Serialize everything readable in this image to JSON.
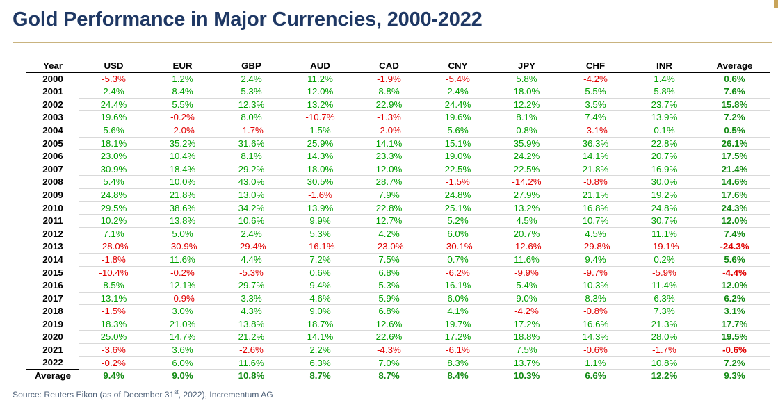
{
  "title": "Gold Performance in Major Currencies, 2000-2022",
  "source": {
    "prefix": "Source: Reuters Eikon (as of December 31",
    "sup": "st",
    "suffix": ", 2022), Incrementum AG"
  },
  "colors": {
    "title": "#1f3864",
    "positive": "#00a000",
    "negative": "#e00000",
    "rule": "#c9b37f"
  },
  "table": {
    "columns": [
      "Year",
      "USD",
      "EUR",
      "GBP",
      "AUD",
      "CAD",
      "CNY",
      "JPY",
      "CHF",
      "INR",
      "Average"
    ],
    "rows": [
      {
        "year": "2000",
        "values": [
          "-5.3%",
          "1.2%",
          "2.4%",
          "11.2%",
          "-1.9%",
          "-5.4%",
          "5.8%",
          "-4.2%",
          "1.4%"
        ],
        "average": "0.6%"
      },
      {
        "year": "2001",
        "values": [
          "2.4%",
          "8.4%",
          "5.3%",
          "12.0%",
          "8.8%",
          "2.4%",
          "18.0%",
          "5.5%",
          "5.8%"
        ],
        "average": "7.6%"
      },
      {
        "year": "2002",
        "values": [
          "24.4%",
          "5.5%",
          "12.3%",
          "13.2%",
          "22.9%",
          "24.4%",
          "12.2%",
          "3.5%",
          "23.7%"
        ],
        "average": "15.8%"
      },
      {
        "year": "2003",
        "values": [
          "19.6%",
          "-0.2%",
          "8.0%",
          "-10.7%",
          "-1.3%",
          "19.6%",
          "8.1%",
          "7.4%",
          "13.9%"
        ],
        "average": "7.2%"
      },
      {
        "year": "2004",
        "values": [
          "5.6%",
          "-2.0%",
          "-1.7%",
          "1.5%",
          "-2.0%",
          "5.6%",
          "0.8%",
          "-3.1%",
          "0.1%"
        ],
        "average": "0.5%"
      },
      {
        "year": "2005",
        "values": [
          "18.1%",
          "35.2%",
          "31.6%",
          "25.9%",
          "14.1%",
          "15.1%",
          "35.9%",
          "36.3%",
          "22.8%"
        ],
        "average": "26.1%"
      },
      {
        "year": "2006",
        "values": [
          "23.0%",
          "10.4%",
          "8.1%",
          "14.3%",
          "23.3%",
          "19.0%",
          "24.2%",
          "14.1%",
          "20.7%"
        ],
        "average": "17.5%"
      },
      {
        "year": "2007",
        "values": [
          "30.9%",
          "18.4%",
          "29.2%",
          "18.0%",
          "12.0%",
          "22.5%",
          "22.5%",
          "21.8%",
          "16.9%"
        ],
        "average": "21.4%"
      },
      {
        "year": "2008",
        "values": [
          "5.4%",
          "10.0%",
          "43.0%",
          "30.5%",
          "28.7%",
          "-1.5%",
          "-14.2%",
          "-0.8%",
          "30.0%"
        ],
        "average": "14.6%"
      },
      {
        "year": "2009",
        "values": [
          "24.8%",
          "21.8%",
          "13.0%",
          "-1.6%",
          "7.9%",
          "24.8%",
          "27.9%",
          "21.1%",
          "19.2%"
        ],
        "average": "17.6%"
      },
      {
        "year": "2010",
        "values": [
          "29.5%",
          "38.6%",
          "34.2%",
          "13.9%",
          "22.8%",
          "25.1%",
          "13.2%",
          "16.8%",
          "24.8%"
        ],
        "average": "24.3%"
      },
      {
        "year": "2011",
        "values": [
          "10.2%",
          "13.8%",
          "10.6%",
          "9.9%",
          "12.7%",
          "5.2%",
          "4.5%",
          "10.7%",
          "30.7%"
        ],
        "average": "12.0%"
      },
      {
        "year": "2012",
        "values": [
          "7.1%",
          "5.0%",
          "2.4%",
          "5.3%",
          "4.2%",
          "6.0%",
          "20.7%",
          "4.5%",
          "11.1%"
        ],
        "average": "7.4%"
      },
      {
        "year": "2013",
        "values": [
          "-28.0%",
          "-30.9%",
          "-29.4%",
          "-16.1%",
          "-23.0%",
          "-30.1%",
          "-12.6%",
          "-29.8%",
          "-19.1%"
        ],
        "average": "-24.3%"
      },
      {
        "year": "2014",
        "values": [
          "-1.8%",
          "11.6%",
          "4.4%",
          "7.2%",
          "7.5%",
          "0.7%",
          "11.6%",
          "9.4%",
          "0.2%"
        ],
        "average": "5.6%"
      },
      {
        "year": "2015",
        "values": [
          "-10.4%",
          "-0.2%",
          "-5.3%",
          "0.6%",
          "6.8%",
          "-6.2%",
          "-9.9%",
          "-9.7%",
          "-5.9%"
        ],
        "average": "-4.4%"
      },
      {
        "year": "2016",
        "values": [
          "8.5%",
          "12.1%",
          "29.7%",
          "9.4%",
          "5.3%",
          "16.1%",
          "5.4%",
          "10.3%",
          "11.4%"
        ],
        "average": "12.0%"
      },
      {
        "year": "2017",
        "values": [
          "13.1%",
          "-0.9%",
          "3.3%",
          "4.6%",
          "5.9%",
          "6.0%",
          "9.0%",
          "8.3%",
          "6.3%"
        ],
        "average": "6.2%"
      },
      {
        "year": "2018",
        "values": [
          "-1.5%",
          "3.0%",
          "4.3%",
          "9.0%",
          "6.8%",
          "4.1%",
          "-4.2%",
          "-0.8%",
          "7.3%"
        ],
        "average": "3.1%"
      },
      {
        "year": "2019",
        "values": [
          "18.3%",
          "21.0%",
          "13.8%",
          "18.7%",
          "12.6%",
          "19.7%",
          "17.2%",
          "16.6%",
          "21.3%"
        ],
        "average": "17.7%"
      },
      {
        "year": "2020",
        "values": [
          "25.0%",
          "14.7%",
          "21.2%",
          "14.1%",
          "22.6%",
          "17.2%",
          "18.8%",
          "14.3%",
          "28.0%"
        ],
        "average": "19.5%"
      },
      {
        "year": "2021",
        "values": [
          "-3.6%",
          "3.6%",
          "-2.6%",
          "2.2%",
          "-4.3%",
          "-6.1%",
          "7.5%",
          "-0.6%",
          "-1.7%"
        ],
        "average": "-0.6%"
      },
      {
        "year": "2022",
        "values": [
          "-0.2%",
          "6.0%",
          "11.6%",
          "6.3%",
          "7.0%",
          "8.3%",
          "13.7%",
          "1.1%",
          "10.8%"
        ],
        "average": "7.2%"
      }
    ],
    "footer": {
      "label": "Average",
      "values": [
        "9.4%",
        "9.0%",
        "10.8%",
        "8.7%",
        "8.7%",
        "8.4%",
        "10.3%",
        "6.6%",
        "12.2%"
      ],
      "average": "9.3%"
    }
  }
}
